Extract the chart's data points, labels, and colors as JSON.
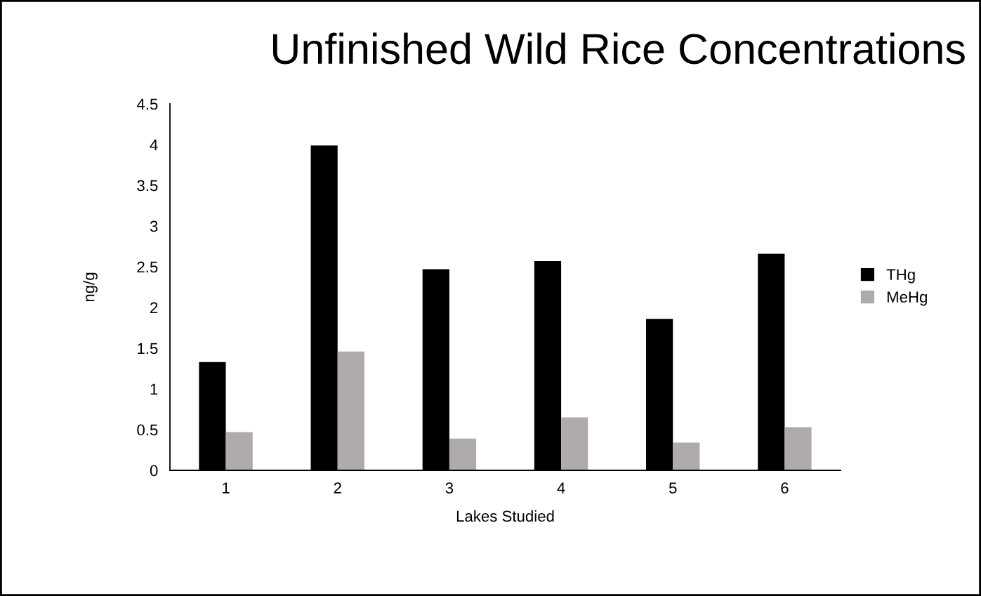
{
  "chart_data": {
    "type": "bar",
    "title": "Unfinished Wild Rice Concentrations",
    "xlabel": "Lakes Studied",
    "ylabel": "ng/g",
    "categories": [
      "1",
      "2",
      "3",
      "4",
      "5",
      "6"
    ],
    "series": [
      {
        "name": "THg",
        "color": "#000000",
        "values": [
          1.33,
          3.99,
          2.47,
          2.57,
          1.86,
          2.66
        ]
      },
      {
        "name": "MeHg",
        "color": "#afabab",
        "values": [
          0.47,
          1.46,
          0.39,
          0.65,
          0.34,
          0.53
        ]
      }
    ],
    "ylim": [
      0,
      4.5
    ],
    "yticks": [
      0,
      0.5,
      1,
      1.5,
      2,
      2.5,
      3,
      3.5,
      4,
      4.5
    ],
    "grid": false,
    "legend": "right"
  }
}
